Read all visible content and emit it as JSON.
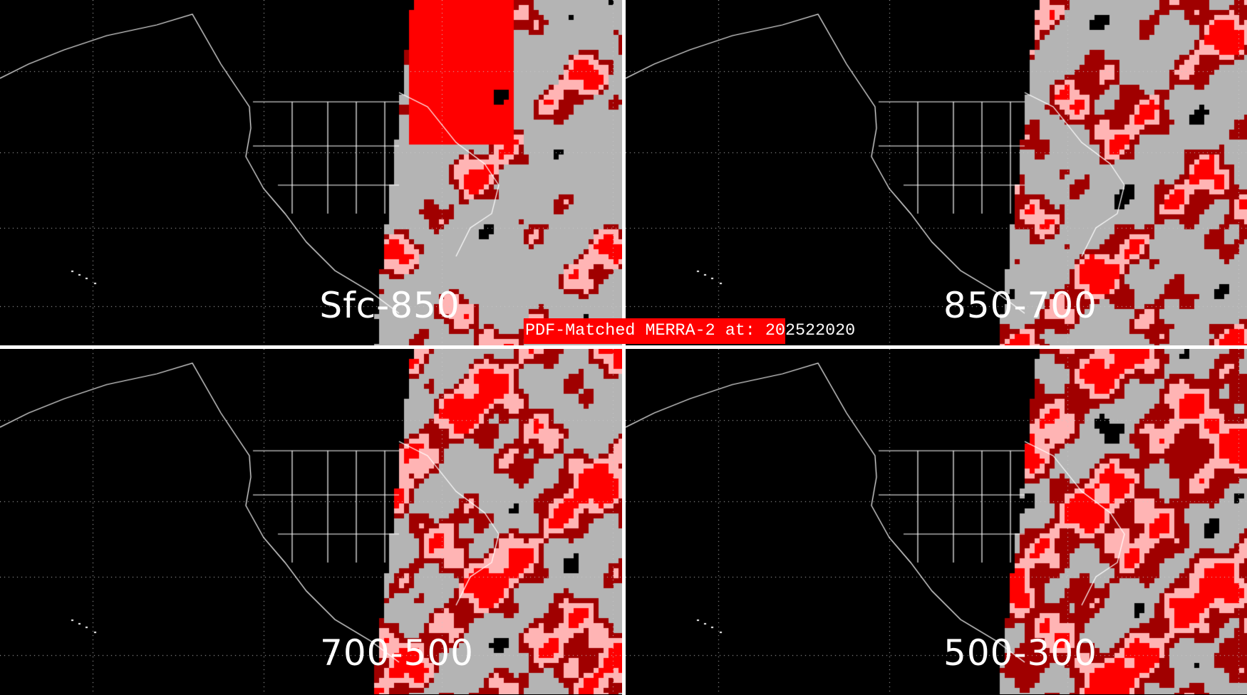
{
  "title": "PDF-Matched MERRA-2 at: 202522020",
  "panels": [
    {
      "label": "Sfc-850"
    },
    {
      "label": "850-700"
    },
    {
      "label": "700-500"
    },
    {
      "label": "500-300"
    }
  ],
  "colors": {
    "background": "#000000",
    "outline": "#ffffff",
    "gray": "#b4b4b4",
    "dark_red": "#a00000",
    "red": "#ff0000",
    "pink": "#ffb4b4",
    "title_bar": "#ff0000"
  }
}
